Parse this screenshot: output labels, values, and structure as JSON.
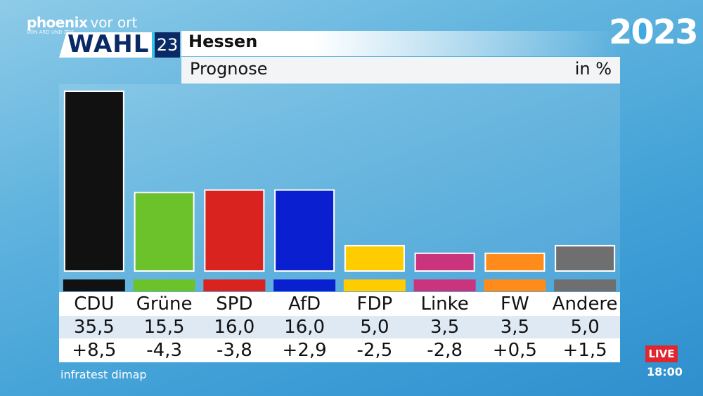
{
  "broadcast": {
    "brand_main": "phoenix",
    "brand_sub": "vor ort",
    "brand_small": "VON ARD UND ZDF",
    "wahl_label": "WAHL",
    "wahl_number": "23",
    "year_logo": "2023",
    "live_label": "LIVE",
    "time": "18:00"
  },
  "header": {
    "title": "Hessen",
    "subtitle": "Prognose",
    "unit": "in %"
  },
  "chart_data": {
    "type": "bar",
    "title": "Hessen",
    "subtitle": "Prognose",
    "ylabel": "in %",
    "ylim": [
      0,
      35.5
    ],
    "categories": [
      "CDU",
      "Grüne",
      "SPD",
      "AfD",
      "FDP",
      "Linke",
      "FW",
      "Andere"
    ],
    "series": [
      {
        "values": [
          35.5,
          15.5,
          16.0,
          16.0,
          5.0,
          3.5,
          3.5,
          5.0
        ]
      }
    ],
    "value_labels": [
      "35,5",
      "15,5",
      "16,0",
      "16,0",
      "5,0",
      "3,5",
      "3,5",
      "5,0"
    ],
    "change_labels": [
      "+8,5",
      "-4,3",
      "-3,8",
      "+2,9",
      "-2,5",
      "-2,8",
      "+0,5",
      "+1,5"
    ],
    "colors": [
      "#111111",
      "#6cc22b",
      "#d8231f",
      "#0a1fd0",
      "#ffcc00",
      "#c9347d",
      "#ff8c1a",
      "#6f6f6f"
    ],
    "grid": false,
    "legend": "none"
  },
  "source": "infratest dimap"
}
